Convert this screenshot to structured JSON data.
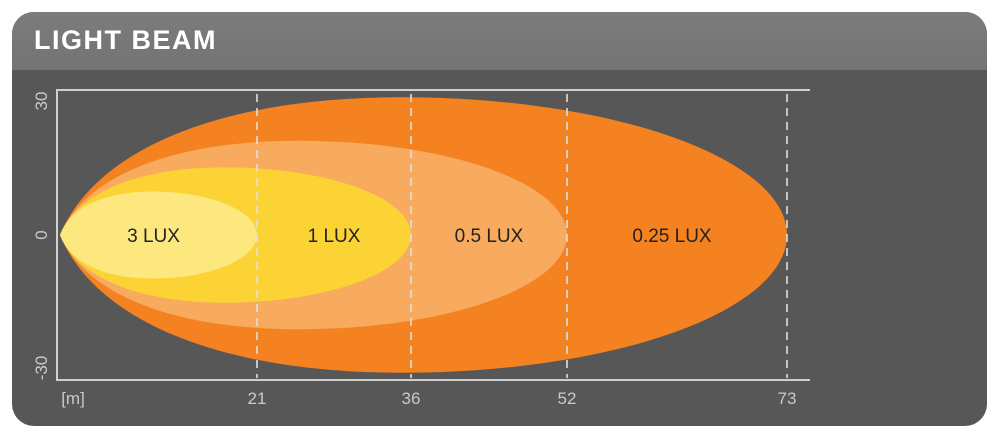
{
  "chart_data": {
    "type": "area",
    "title": "LIGHT BEAM",
    "xlabel": "[m]",
    "x_ticks": [
      21,
      36,
      52,
      73
    ],
    "y_ticks": [
      30,
      0,
      -30
    ],
    "ylim": [
      -30,
      30
    ],
    "xlim": [
      0,
      75
    ],
    "grid": "dashed vertical lines at x ticks",
    "series": [
      {
        "name": "0.25 LUX",
        "reach": 73,
        "half_width": 28.5,
        "color": "#f58220"
      },
      {
        "name": "0.5 LUX",
        "reach": 52,
        "half_width": 19.5,
        "color": "#f8aa5e"
      },
      {
        "name": "1 LUX",
        "reach": 36,
        "half_width": 14,
        "color": "#fbd335"
      },
      {
        "name": "3 LUX",
        "reach": 21,
        "half_width": 9,
        "color": "#fde77f"
      }
    ]
  },
  "colors": {
    "header": "#777777",
    "background": "#575757",
    "axis": "#d0d0d0"
  }
}
